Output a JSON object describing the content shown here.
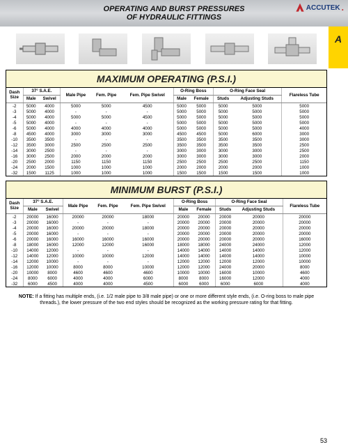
{
  "header": {
    "title_line1": "OPERATING AND BURST PRESSURES",
    "title_line2": "OF HYDRAULIC FITTINGS",
    "brand": "ACCUTEK"
  },
  "tab_letter": "A",
  "page_number": "53",
  "note_label": "NOTE:",
  "note_text": "If a fitting has multiple ends, (i.e. 1/2 male pipe to 3/8 male pipe) or one or more different style ends, (i.e. O-ring boss to male pipe threads.), the lower pressure of the two end styles should be recognized as the working pressure rating for that fitting.",
  "columns": {
    "dash": "Dash Size",
    "sae37": "37° S.A.E.",
    "sae_male": "Male",
    "sae_swivel": "Swivel",
    "male_pipe": "Male Pipe",
    "fem_pipe": "Fem. Pipe",
    "fem_pipe_swivel": "Fem. Pipe Swivel",
    "oring_boss": "O-Ring Boss",
    "ob_male": "Male",
    "ob_female": "Female",
    "ofs": "O-Ring Face Seal",
    "ofs_studs": "Studs",
    "ofs_adj": "Adjusting Studs",
    "flareless": "Flareless Tube"
  },
  "sections": {
    "operating": {
      "title": "MAXIMUM OPERATING (P.S.I.)",
      "rows": [
        {
          "dash": "-2",
          "sae_m": "5000",
          "sae_s": "4000",
          "mp": "5000",
          "fp": "5000",
          "fps": "4500",
          "ob_m": "5000",
          "ob_f": "5000",
          "ofs_s": "5000",
          "ofs_a": "5000",
          "fl": "5000"
        },
        {
          "dash": "-3",
          "sae_m": "5000",
          "sae_s": "4000",
          "mp": "-",
          "fp": "-",
          "fps": "-",
          "ob_m": "5000",
          "ob_f": "5000",
          "ofs_s": "5000",
          "ofs_a": "5000",
          "fl": "5000"
        },
        {
          "dash": "-4",
          "sae_m": "5000",
          "sae_s": "4000",
          "mp": "5000",
          "fp": "5000",
          "fps": "4500",
          "ob_m": "5000",
          "ob_f": "5000",
          "ofs_s": "5000",
          "ofs_a": "5000",
          "fl": "5000"
        },
        {
          "dash": "-5",
          "sae_m": "5000",
          "sae_s": "4000",
          "mp": "-",
          "fp": "-",
          "fps": "-",
          "ob_m": "5000",
          "ob_f": "5000",
          "ofs_s": "5000",
          "ofs_a": "5000",
          "fl": "5000"
        },
        {
          "dash": "-6",
          "sae_m": "5000",
          "sae_s": "4000",
          "mp": "4000",
          "fp": "4000",
          "fps": "4000",
          "ob_m": "5000",
          "ob_f": "5000",
          "ofs_s": "5000",
          "ofs_a": "5000",
          "fl": "4000"
        },
        {
          "dash": "-8",
          "sae_m": "4500",
          "sae_s": "4000",
          "mp": "3000",
          "fp": "3000",
          "fps": "3000",
          "ob_m": "4500",
          "ob_f": "4500",
          "ofs_s": "5000",
          "ofs_a": "6000",
          "fl": "3000"
        },
        {
          "dash": "-10",
          "sae_m": "3500",
          "sae_s": "3500",
          "mp": "-",
          "fp": "-",
          "fps": "-",
          "ob_m": "3500",
          "ob_f": "3500",
          "ofs_s": "3500",
          "ofs_a": "3500",
          "fl": "3000"
        },
        {
          "dash": "-12",
          "sae_m": "3500",
          "sae_s": "3000",
          "mp": "2500",
          "fp": "2500",
          "fps": "2500",
          "ob_m": "3500",
          "ob_f": "3500",
          "ofs_s": "3500",
          "ofs_a": "3500",
          "fl": "2500"
        },
        {
          "dash": "-14",
          "sae_m": "3000",
          "sae_s": "2500",
          "mp": "-",
          "fp": "-",
          "fps": "-",
          "ob_m": "3000",
          "ob_f": "3000",
          "ofs_s": "3000",
          "ofs_a": "3000",
          "fl": "2500"
        },
        {
          "dash": "-16",
          "sae_m": "3000",
          "sae_s": "2500",
          "mp": "2000",
          "fp": "2000",
          "fps": "2000",
          "ob_m": "3000",
          "ob_f": "3000",
          "ofs_s": "3000",
          "ofs_a": "3000",
          "fl": "2000"
        },
        {
          "dash": "-20",
          "sae_m": "2500",
          "sae_s": "2000",
          "mp": "1150",
          "fp": "1150",
          "fps": "1150",
          "ob_m": "2500",
          "ob_f": "2500",
          "ofs_s": "2500",
          "ofs_a": "2500",
          "fl": "1150"
        },
        {
          "dash": "-24",
          "sae_m": "2000",
          "sae_s": "1500",
          "mp": "1000",
          "fp": "1000",
          "fps": "1000",
          "ob_m": "2000",
          "ob_f": "2000",
          "ofs_s": "2000",
          "ofs_a": "2000",
          "fl": "1000"
        },
        {
          "dash": "-32",
          "sae_m": "1500",
          "sae_s": "1125",
          "mp": "1000",
          "fp": "1000",
          "fps": "1000",
          "ob_m": "1500",
          "ob_f": "1500",
          "ofs_s": "1500",
          "ofs_a": "1500",
          "fl": "1000"
        }
      ]
    },
    "burst": {
      "title": "MINIMUM BURST (P.S.I.)",
      "rows": [
        {
          "dash": "-2",
          "sae_m": "20000",
          "sae_s": "16000",
          "mp": "20000",
          "fp": "20000",
          "fps": "18000",
          "ob_m": "20000",
          "ob_f": "20000",
          "ofs_s": "20000",
          "ofs_a": "20000",
          "fl": "20000"
        },
        {
          "dash": "-3",
          "sae_m": "20000",
          "sae_s": "16000",
          "mp": "-",
          "fp": "-",
          "fps": "-",
          "ob_m": "20000",
          "ob_f": "20000",
          "ofs_s": "20000",
          "ofs_a": "20000",
          "fl": "20000"
        },
        {
          "dash": "-4",
          "sae_m": "20000",
          "sae_s": "16000",
          "mp": "20000",
          "fp": "20000",
          "fps": "18000",
          "ob_m": "20000",
          "ob_f": "20000",
          "ofs_s": "20000",
          "ofs_a": "20000",
          "fl": "20000"
        },
        {
          "dash": "-5",
          "sae_m": "20000",
          "sae_s": "16000",
          "mp": "-",
          "fp": "-",
          "fps": "-",
          "ob_m": "20000",
          "ob_f": "20000",
          "ofs_s": "20000",
          "ofs_a": "20000",
          "fl": "20000"
        },
        {
          "dash": "-6",
          "sae_m": "20000",
          "sae_s": "16000",
          "mp": "16000",
          "fp": "16000",
          "fps": "16000",
          "ob_m": "20000",
          "ob_f": "20000",
          "ofs_s": "20000",
          "ofs_a": "20000",
          "fl": "16000"
        },
        {
          "dash": "-8",
          "sae_m": "18000",
          "sae_s": "16000",
          "mp": "12000",
          "fp": "12000",
          "fps": "16000",
          "ob_m": "18000",
          "ob_f": "18000",
          "ofs_s": "24000",
          "ofs_a": "24000",
          "fl": "12000"
        },
        {
          "dash": "-10",
          "sae_m": "14000",
          "sae_s": "12000",
          "mp": "-",
          "fp": "-",
          "fps": "-",
          "ob_m": "14000",
          "ob_f": "14000",
          "ofs_s": "14000",
          "ofs_a": "14000",
          "fl": "12000"
        },
        {
          "dash": "-12",
          "sae_m": "14000",
          "sae_s": "12000",
          "mp": "10000",
          "fp": "10000",
          "fps": "12000",
          "ob_m": "14000",
          "ob_f": "14000",
          "ofs_s": "14000",
          "ofs_a": "14000",
          "fl": "10000"
        },
        {
          "dash": "-14",
          "sae_m": "12000",
          "sae_s": "10000",
          "mp": "-",
          "fp": "-",
          "fps": "-",
          "ob_m": "12000",
          "ob_f": "12000",
          "ofs_s": "12000",
          "ofs_a": "12000",
          "fl": "10000"
        },
        {
          "dash": "-16",
          "sae_m": "12000",
          "sae_s": "10000",
          "mp": "8000",
          "fp": "8000",
          "fps": "10000",
          "ob_m": "12000",
          "ob_f": "12000",
          "ofs_s": "24000",
          "ofs_a": "20000",
          "fl": "8000"
        },
        {
          "dash": "-20",
          "sae_m": "10000",
          "sae_s": "8000",
          "mp": "4600",
          "fp": "4600",
          "fps": "4600",
          "ob_m": "10000",
          "ob_f": "10000",
          "ofs_s": "16000",
          "ofs_a": "10000",
          "fl": "4600"
        },
        {
          "dash": "-24",
          "sae_m": "8000",
          "sae_s": "6000",
          "mp": "4000",
          "fp": "4000",
          "fps": "6000",
          "ob_m": "8000",
          "ob_f": "8000",
          "ofs_s": "16000",
          "ofs_a": "12000",
          "fl": "4000"
        },
        {
          "dash": "-32",
          "sae_m": "6000",
          "sae_s": "4500",
          "mp": "4000",
          "fp": "4000",
          "fps": "4500",
          "ob_m": "6000",
          "ob_f": "6000",
          "ofs_s": "6000",
          "ofs_a": "6000",
          "fl": "4000"
        }
      ]
    }
  },
  "styling": {
    "header_gradient": [
      "#c0c3c7",
      "#d9dbde",
      "#b9bcc0"
    ],
    "section_title_bg": "#faf6d0",
    "tab_bg": "#ffd400",
    "border_color": "#000000",
    "grid_color": "#bbbbbb",
    "text_color": "#111111",
    "brand_color": "#1a3a7a",
    "brand_accent": "#c1272d",
    "title_fontsize": 11,
    "section_title_fontsize": 14,
    "table_fontsize": 6.2,
    "note_fontsize": 7
  }
}
